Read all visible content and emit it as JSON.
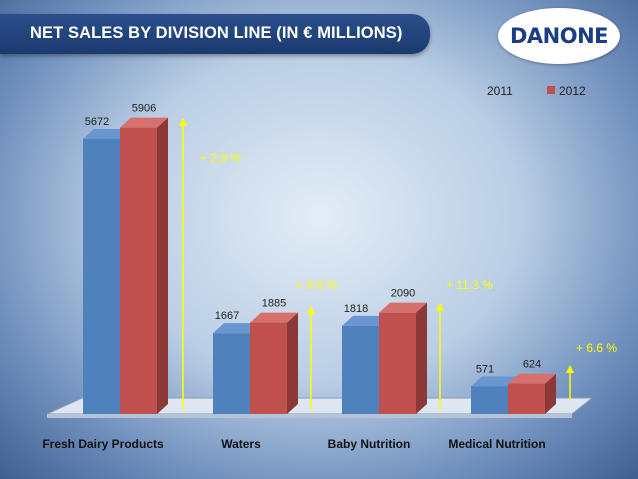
{
  "header": {
    "title": "NET SALES BY DIVISION LINE  (IN € MILLIONS)",
    "logo_text": "DANONE"
  },
  "colors": {
    "series_2011": "#4f81bd",
    "series_2012": "#c0504d",
    "growth_label": "#ffff00",
    "title_bar": "#1f4278"
  },
  "chart_data": {
    "type": "bar",
    "title": "NET SALES BY DIVISION LINE  (IN € MILLIONS)",
    "categories": [
      "Fresh Dairy Products",
      "Waters",
      "Baby Nutrition",
      "Medical Nutrition"
    ],
    "series": [
      {
        "name": "2011",
        "values": [
          5672,
          1667,
          1818,
          571
        ]
      },
      {
        "name": "2012",
        "values": [
          5906,
          1885,
          2090,
          624
        ]
      }
    ],
    "growth_labels": [
      "+ 2.9 %",
      "+ 9.6 %",
      "+ 11.3 %",
      "+ 6.6 %"
    ],
    "ylim": [
      0,
      6500
    ],
    "grid": false,
    "legend_position": "top-right",
    "style": "3d-clustered-column"
  }
}
